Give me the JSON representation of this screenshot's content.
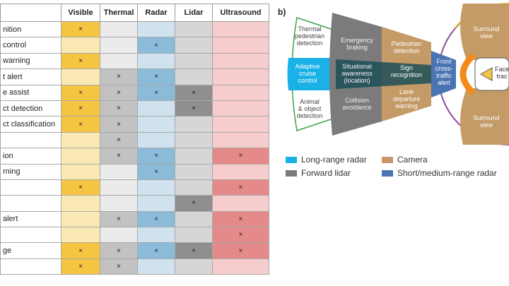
{
  "table": {
    "columns": [
      "",
      "Visible",
      "Thermal",
      "Radar",
      "Lidar",
      "Ultrasound"
    ],
    "column_colors": {
      "Visible": {
        "on": "#f5c542",
        "off": "#fbe9b4"
      },
      "Thermal": {
        "on": "#c2c2c2",
        "off": "#ebebeb"
      },
      "Radar": {
        "on": "#8bbbd9",
        "off": "#cfe2ee"
      },
      "Lidar": {
        "on": "#8f8f8f",
        "off": "#d6d6d6"
      },
      "Ultrasound": {
        "on": "#e48a8a",
        "off": "#f6cccc"
      }
    },
    "rows": [
      {
        "feature": "nition",
        "marks": [
          "×",
          "",
          "",
          "",
          ""
        ]
      },
      {
        "feature": "control",
        "marks": [
          "",
          "",
          "×",
          "",
          ""
        ]
      },
      {
        "feature": "warning",
        "marks": [
          "×",
          "",
          "",
          "",
          ""
        ]
      },
      {
        "feature": "t alert",
        "marks": [
          "",
          "×",
          "×",
          "",
          ""
        ]
      },
      {
        "feature": "e assist",
        "marks": [
          "×",
          "×",
          "×",
          "×",
          ""
        ]
      },
      {
        "feature": "ct detection",
        "marks": [
          "×",
          "×",
          "",
          "×",
          ""
        ]
      },
      {
        "feature": "ct classification",
        "marks": [
          "×",
          "×",
          "",
          "",
          ""
        ]
      },
      {
        "feature": "",
        "marks": [
          "",
          "×",
          "",
          "",
          ""
        ]
      },
      {
        "feature": "ion",
        "marks": [
          "",
          "×",
          "×",
          "",
          "×"
        ]
      },
      {
        "feature": "rning",
        "marks": [
          "",
          "",
          "×",
          "",
          ""
        ]
      },
      {
        "feature": "",
        "marks": [
          "×",
          "",
          "",
          "",
          "×"
        ]
      },
      {
        "feature": "",
        "marks": [
          "",
          "",
          "",
          "×",
          ""
        ]
      },
      {
        "feature": "alert",
        "marks": [
          "",
          "×",
          "×",
          "",
          "×"
        ]
      },
      {
        "feature": "",
        "marks": [
          "",
          "",
          "",
          "",
          "×"
        ]
      },
      {
        "feature": "ge",
        "marks": [
          "×",
          "×",
          "×",
          "×",
          "×"
        ]
      },
      {
        "feature": "",
        "marks": [
          "×",
          "×",
          "",
          "",
          ""
        ]
      }
    ]
  },
  "figure": {
    "panel_label": "b)",
    "segments": {
      "thermal": "Thermal\npedestrian\ndetection",
      "adaptive": "Adaptive\ncruise\ncontrol",
      "animal": "Animal\n& object\ndetection",
      "emergency": "Emergency\nbraking",
      "situational": "Situational\nawareness\n(location)",
      "collision": "Collision\navoidance",
      "pedestrian": "Pedestrian\ndetection",
      "sign": "Sign\nrecognition",
      "lane": "Lane\ndeparture\nwarning",
      "cross": "Front\ncross-\ntraffic\nalert",
      "surround_top": "Surround\nview",
      "surround_bottom": "Surround\nview",
      "face": "Face\ntrac"
    },
    "colors": {
      "long_range_radar": "#19b1e6",
      "forward_lidar": "#7b7b7b",
      "camera": "#c49a66",
      "short_medium_radar": "#4a74b2",
      "thermal": "#ffffff",
      "ring": "#8e4b9e",
      "orange": "#f28b1c"
    },
    "legend": [
      {
        "label": "Long-range radar",
        "color": "#19b1e6"
      },
      {
        "label": "Camera",
        "color": "#c49a66"
      },
      {
        "label": "Forward lidar",
        "color": "#7b7b7b"
      },
      {
        "label": "Short/medium-range radar",
        "color": "#4a74b2"
      }
    ]
  }
}
